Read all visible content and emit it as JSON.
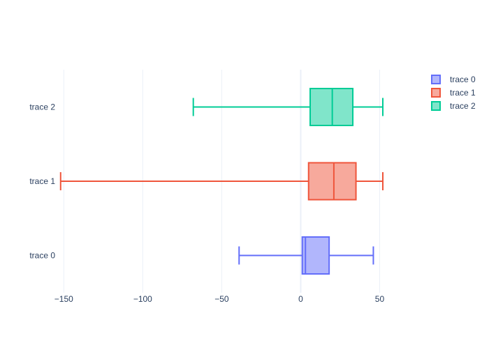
{
  "chart_data": {
    "type": "box",
    "orientation": "horizontal",
    "title": "",
    "xlabel": "",
    "ylabel": "",
    "xlim": [
      -155,
      75
    ],
    "x_ticks": [
      -150,
      -100,
      -50,
      0,
      50
    ],
    "x_tick_labels": [
      "−150",
      "−100",
      "−50",
      "0",
      "50"
    ],
    "grid": true,
    "legend_placement": "top-right",
    "categories": [
      "trace 0",
      "trace 1",
      "trace 2"
    ],
    "series": [
      {
        "name": "trace 0",
        "color": "#636efa",
        "fill": "#b1b6fc",
        "lower_whisker": -39,
        "q1": 1,
        "median": 3,
        "q3": 18,
        "upper_whisker": 46
      },
      {
        "name": "trace 1",
        "color": "#ef553b",
        "fill": "#f7a99c",
        "lower_whisker": -152,
        "q1": 5,
        "median": 21,
        "q3": 35,
        "upper_whisker": 52
      },
      {
        "name": "trace 2",
        "color": "#00cc96",
        "fill": "#80e5ca",
        "lower_whisker": -68,
        "q1": 6,
        "median": 20,
        "q3": 33,
        "upper_whisker": 52
      }
    ]
  }
}
